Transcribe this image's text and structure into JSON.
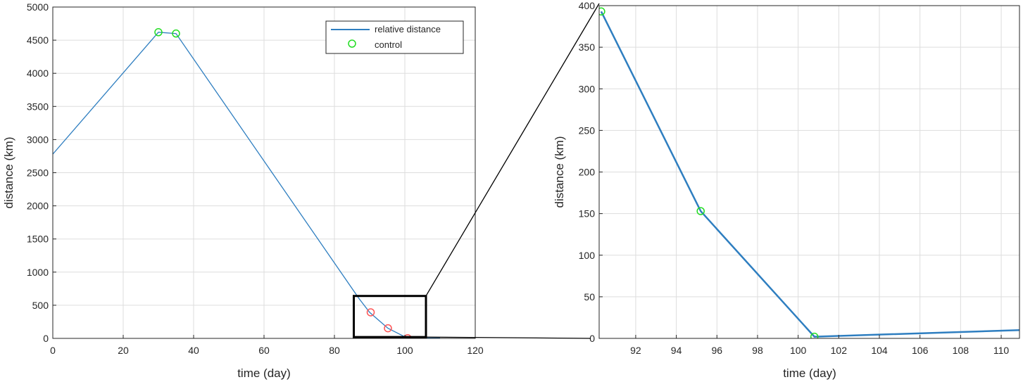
{
  "colors": {
    "line": "#2E7EC0",
    "marker_green": "#22DD22",
    "marker_red": "#FF5555",
    "grid": "#DDDDDD",
    "axis": "#262626"
  },
  "chart_data": [
    {
      "type": "line",
      "xlabel": "time (day)",
      "ylabel": "distance (km)",
      "xlim": [
        0,
        120
      ],
      "ylim": [
        0,
        5000
      ],
      "xticks": [
        0,
        20,
        40,
        60,
        80,
        100,
        120
      ],
      "yticks": [
        0,
        500,
        1000,
        1500,
        2000,
        2500,
        3000,
        3500,
        4000,
        4500,
        5000
      ],
      "grid": true,
      "legend_position": "top-right",
      "series": [
        {
          "name": "relative distance",
          "kind": "line",
          "x": [
            0,
            30,
            35,
            87,
            90,
            95.2,
            100.8,
            110
          ],
          "y": [
            2780,
            4620,
            4600,
            600,
            393,
            153,
            2,
            10
          ]
        },
        {
          "name": "control",
          "kind": "marker",
          "color": "green",
          "x": [
            30,
            35
          ],
          "y": [
            4620,
            4600
          ]
        },
        {
          "kind": "marker",
          "color": "red",
          "x": [
            90.3,
            95.2,
            100.8
          ],
          "y": [
            393,
            153,
            2
          ]
        }
      ],
      "zoom_box": {
        "x": [
          85.5,
          106
        ],
        "y": [
          20,
          640
        ]
      }
    },
    {
      "type": "line",
      "xlabel": "time (day)",
      "ylabel": "distance (km)",
      "xlim": [
        90.2,
        110.9
      ],
      "ylim": [
        0,
        400
      ],
      "xticks": [
        92,
        94,
        96,
        98,
        100,
        102,
        104,
        106,
        108,
        110
      ],
      "yticks": [
        0,
        50,
        100,
        150,
        200,
        250,
        300,
        350,
        400
      ],
      "grid": true,
      "series": [
        {
          "kind": "line",
          "x": [
            90.3,
            95.2,
            100.8,
            110.9
          ],
          "y": [
            393,
            153,
            2,
            10
          ]
        },
        {
          "kind": "marker",
          "color": "green",
          "x": [
            90.3,
            95.2,
            100.8
          ],
          "y": [
            393,
            153,
            2
          ]
        }
      ]
    }
  ]
}
